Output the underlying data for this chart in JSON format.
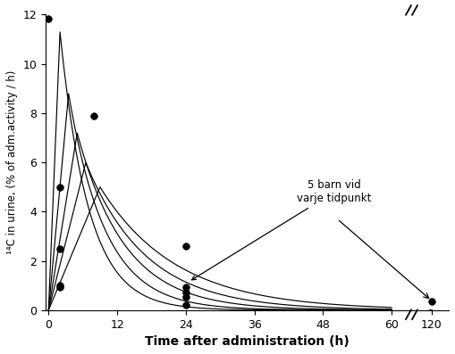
{
  "ylabel": "¹⁴C in urine, (% of adm.activity / h)",
  "xlabel": "Time after administration (h)",
  "ylim": [
    0,
    12
  ],
  "yticks": [
    0,
    2,
    4,
    6,
    8,
    10,
    12
  ],
  "xtick_real": [
    0,
    12,
    24,
    36,
    48,
    60,
    120
  ],
  "annotation_text": "5 barn vid\nvarje tidpunkt",
  "dot_points": [
    [
      0,
      11.85
    ],
    [
      2,
      5.0
    ],
    [
      2,
      2.5
    ],
    [
      2,
      1.0
    ],
    [
      2,
      0.95
    ],
    [
      8,
      7.9
    ],
    [
      24,
      2.6
    ],
    [
      24,
      0.95
    ],
    [
      24,
      0.7
    ],
    [
      24,
      0.55
    ],
    [
      24,
      0.22
    ],
    [
      120,
      0.35
    ]
  ],
  "curves": [
    {
      "peak_x": 2.0,
      "peak_y": 11.3,
      "decay": 0.2
    },
    {
      "peak_x": 3.5,
      "peak_y": 8.8,
      "decay": 0.155
    },
    {
      "peak_x": 5.0,
      "peak_y": 7.2,
      "decay": 0.12
    },
    {
      "peak_x": 6.5,
      "peak_y": 6.0,
      "decay": 0.095
    },
    {
      "peak_x": 9.0,
      "peak_y": 5.0,
      "decay": 0.075
    }
  ],
  "background_color": "#ffffff",
  "line_color": "#000000",
  "dot_color": "#000000",
  "break_display_x": 63.5,
  "x_after_break": 67.0,
  "xlim_display": [
    -0.5,
    70.0
  ]
}
